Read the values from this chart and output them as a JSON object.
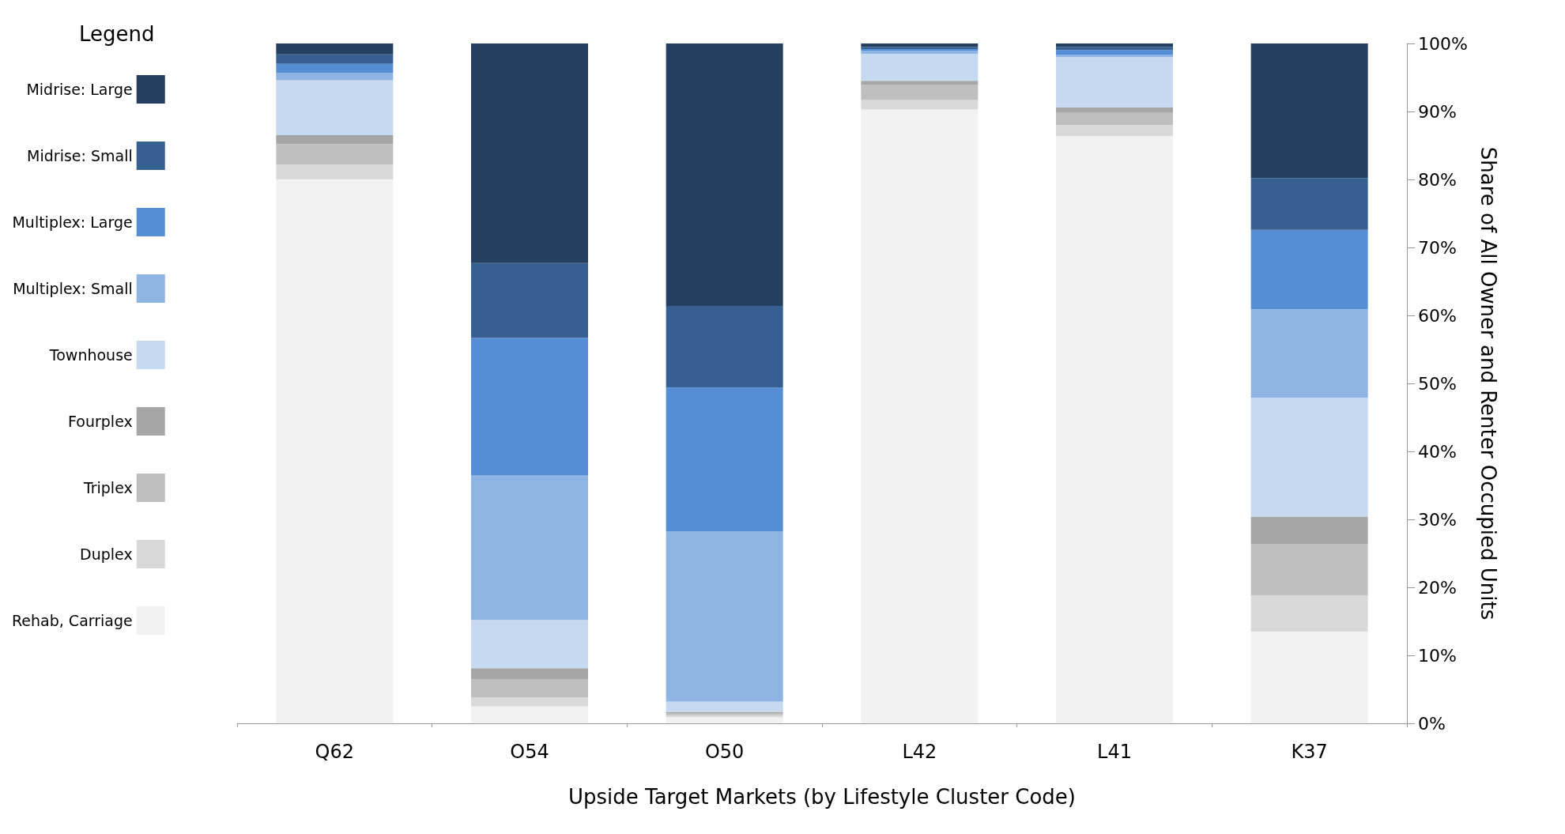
{
  "chart_data": {
    "type": "bar",
    "stacked": true,
    "xlabel": "Upside Target Markets (by Lifestyle Cluster Code)",
    "ylabel": "Share of All Owner and Renter Occupied Units",
    "legend_title": "Legend",
    "legend": "left",
    "grid": false,
    "categories": [
      "Q62",
      "O54",
      "O50",
      "L42",
      "L41",
      "K37"
    ],
    "ylim": [
      0,
      100
    ],
    "yticks": [
      {
        "value": 0,
        "label": "0%"
      },
      {
        "value": 10,
        "label": "10%"
      },
      {
        "value": 20,
        "label": "20%"
      },
      {
        "value": 30,
        "label": "30%"
      },
      {
        "value": 40,
        "label": "40%"
      },
      {
        "value": 50,
        "label": "50%"
      },
      {
        "value": 60,
        "label": "60%"
      },
      {
        "value": 70,
        "label": "70%"
      },
      {
        "value": 80,
        "label": "80%"
      },
      {
        "value": 90,
        "label": "90%"
      },
      {
        "value": 100,
        "label": "100%"
      }
    ],
    "series": [
      {
        "name": "Rehab, Carriage",
        "color": "#f2f2f2",
        "values": [
          80,
          2.5,
          0.9,
          90.3,
          86.4,
          13.5
        ]
      },
      {
        "name": "Duplex",
        "color": "#d9d9d9",
        "values": [
          2.2,
          1.3,
          0.3,
          1.4,
          1.6,
          5.3
        ]
      },
      {
        "name": "Triplex",
        "color": "#bfbfbf",
        "values": [
          3,
          2.7,
          0.3,
          2.2,
          1.8,
          7.6
        ]
      },
      {
        "name": "Fourplex",
        "color": "#a6a6a6",
        "values": [
          1.3,
          1.6,
          0.2,
          0.6,
          0.8,
          4
        ]
      },
      {
        "name": "Townhouse",
        "color": "#c6d9f1",
        "values": [
          8.1,
          7.1,
          1.5,
          4,
          7.4,
          17.5
        ]
      },
      {
        "name": "Multiplex: Small",
        "color": "#8db4e2",
        "values": [
          1.1,
          21.3,
          25,
          0.4,
          0.3,
          13
        ]
      },
      {
        "name": "Multiplex: Large",
        "color": "#558ed5",
        "values": [
          1.3,
          20.2,
          21.2,
          0.3,
          0.7,
          11.7
        ]
      },
      {
        "name": "Midrise: Small",
        "color": "#366092",
        "values": [
          1.4,
          11,
          12,
          0.3,
          0.5,
          7.6
        ]
      },
      {
        "name": "Midrise: Large",
        "color": "#243f60",
        "values": [
          1.6,
          32.3,
          38.6,
          0.5,
          0.5,
          19.8
        ]
      }
    ]
  }
}
